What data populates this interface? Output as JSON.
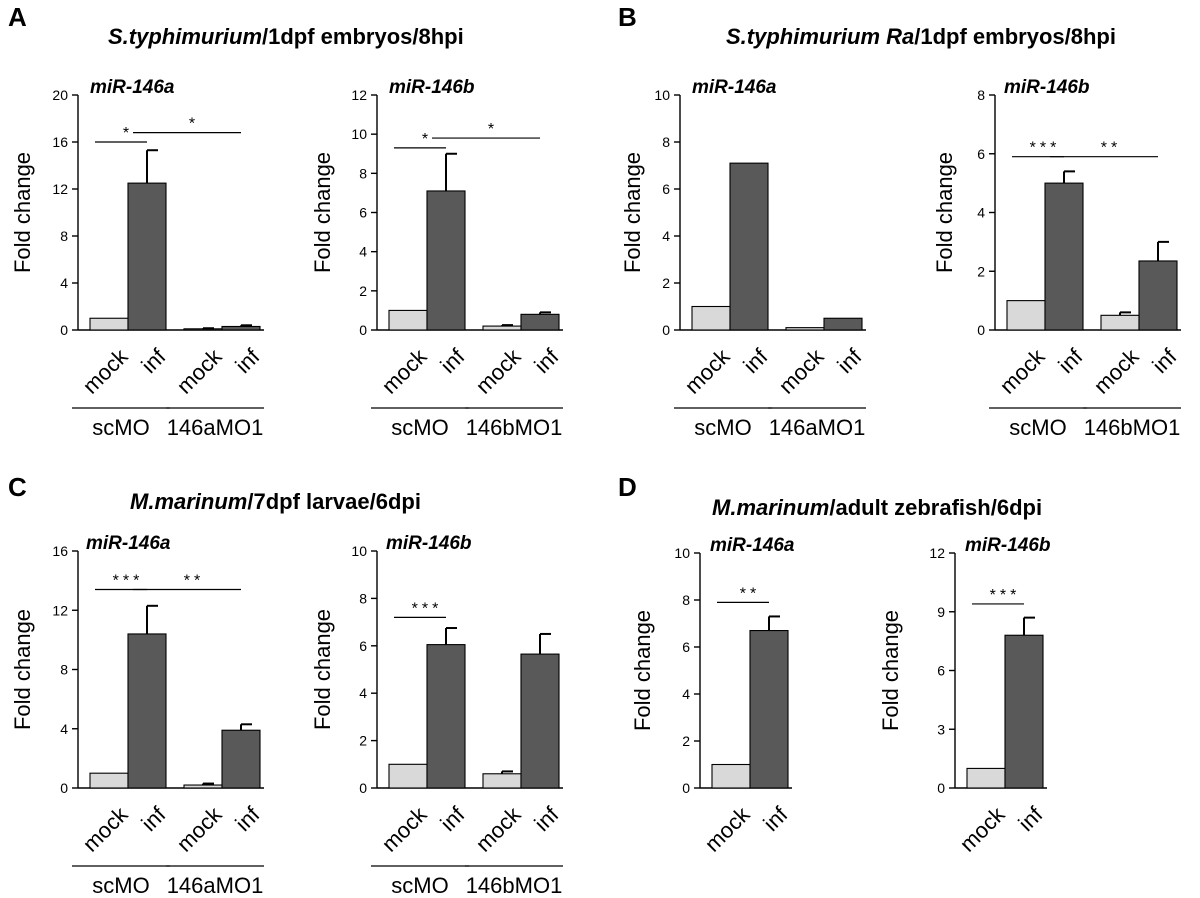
{
  "panels": [
    {
      "letter": "A",
      "title_italic": "S.typhimurium",
      "title_rest": "/1dpf embryos/8hpi"
    },
    {
      "letter": "B",
      "title_italic": "S.typhimurium Ra",
      "title_rest": "/1dpf embryos/8hpi"
    },
    {
      "letter": "C",
      "title_italic": "M.marinum",
      "title_rest": "/7dpf larvae/6dpi"
    },
    {
      "letter": "D",
      "title_italic": "M.marinum",
      "title_rest": "/adult zebrafish/6dpi"
    }
  ],
  "colors": {
    "mock": "#d9d9d9",
    "inf": "#595959",
    "axis": "#000000"
  },
  "chart_data": [
    {
      "type": "bar",
      "panel": "A",
      "title": "miR-146a",
      "ylabel": "Fold change",
      "ylim": [
        0,
        20
      ],
      "yticks": [
        0,
        4,
        8,
        12,
        16,
        20
      ],
      "categories": [
        "mock",
        "inf",
        "mock",
        "inf"
      ],
      "groups": [
        {
          "label": "scMO",
          "span": [
            0,
            1
          ]
        },
        {
          "label": "146aMO1",
          "span": [
            2,
            3
          ]
        }
      ],
      "values": [
        1,
        12.5,
        0.1,
        0.3
      ],
      "errors": [
        0,
        2.8,
        0.05,
        0.1
      ],
      "significance": [
        {
          "from": 0,
          "to": 1,
          "label": "*",
          "y": 16
        },
        {
          "from": 1,
          "to": 3,
          "label": "*",
          "y": 16.8
        }
      ]
    },
    {
      "type": "bar",
      "panel": "A",
      "title": "miR-146b",
      "ylabel": "Fold change",
      "ylim": [
        0,
        12
      ],
      "yticks": [
        0,
        2,
        4,
        6,
        8,
        10,
        12
      ],
      "categories": [
        "mock",
        "inf",
        "mock",
        "inf"
      ],
      "groups": [
        {
          "label": "scMO",
          "span": [
            0,
            1
          ]
        },
        {
          "label": "146bMO1",
          "span": [
            2,
            3
          ]
        }
      ],
      "values": [
        1,
        7.1,
        0.2,
        0.8
      ],
      "errors": [
        0,
        1.9,
        0.05,
        0.1
      ],
      "significance": [
        {
          "from": 0,
          "to": 1,
          "label": "*",
          "y": 9.3
        },
        {
          "from": 1,
          "to": 3,
          "label": "*",
          "y": 9.8
        }
      ]
    },
    {
      "type": "bar",
      "panel": "B",
      "title": "miR-146a",
      "ylabel": "Fold change",
      "ylim": [
        0,
        10
      ],
      "yticks": [
        0,
        2,
        4,
        6,
        8,
        10
      ],
      "categories": [
        "mock",
        "inf",
        "mock",
        "inf"
      ],
      "groups": [
        {
          "label": "scMO",
          "span": [
            0,
            1
          ]
        },
        {
          "label": "146aMO1",
          "span": [
            2,
            3
          ]
        }
      ],
      "values": [
        1,
        7.1,
        0.1,
        0.5
      ],
      "errors": [
        0,
        0,
        0,
        0
      ],
      "significance": []
    },
    {
      "type": "bar",
      "panel": "B",
      "title": "miR-146b",
      "ylabel": "Fold change",
      "ylim": [
        0,
        8
      ],
      "yticks": [
        0,
        2,
        4,
        6,
        8
      ],
      "categories": [
        "mock",
        "inf",
        "mock",
        "inf"
      ],
      "groups": [
        {
          "label": "scMO",
          "span": [
            0,
            1
          ]
        },
        {
          "label": "146bMO1",
          "span": [
            2,
            3
          ]
        }
      ],
      "values": [
        1,
        5.0,
        0.5,
        2.35
      ],
      "errors": [
        0,
        0.4,
        0.1,
        0.65
      ],
      "significance": [
        {
          "from": 0,
          "to": 1,
          "label": "***",
          "y": 5.9
        },
        {
          "from": 1,
          "to": 3,
          "label": "**",
          "y": 5.9
        }
      ]
    },
    {
      "type": "bar",
      "panel": "C",
      "title": "miR-146a",
      "ylabel": "Fold change",
      "ylim": [
        0,
        16
      ],
      "yticks": [
        0,
        4,
        8,
        12,
        16
      ],
      "categories": [
        "mock",
        "inf",
        "mock",
        "inf"
      ],
      "groups": [
        {
          "label": "scMO",
          "span": [
            0,
            1
          ]
        },
        {
          "label": "146aMO1",
          "span": [
            2,
            3
          ]
        }
      ],
      "values": [
        1,
        10.4,
        0.2,
        3.9
      ],
      "errors": [
        0,
        1.9,
        0.1,
        0.4
      ],
      "significance": [
        {
          "from": 0,
          "to": 1,
          "label": "***",
          "y": 13.4
        },
        {
          "from": 1,
          "to": 3,
          "label": "**",
          "y": 13.4
        }
      ]
    },
    {
      "type": "bar",
      "panel": "C",
      "title": "miR-146b",
      "ylabel": "Fold change",
      "ylim": [
        0,
        10
      ],
      "yticks": [
        0,
        2,
        4,
        6,
        8,
        10
      ],
      "categories": [
        "mock",
        "inf",
        "mock",
        "inf"
      ],
      "groups": [
        {
          "label": "scMO",
          "span": [
            0,
            1
          ]
        },
        {
          "label": "146bMO1",
          "span": [
            2,
            3
          ]
        }
      ],
      "values": [
        1,
        6.05,
        0.6,
        5.65
      ],
      "errors": [
        0,
        0.7,
        0.1,
        0.85
      ],
      "significance": [
        {
          "from": 0,
          "to": 1,
          "label": "***",
          "y": 7.2
        }
      ]
    },
    {
      "type": "bar",
      "panel": "D",
      "title": "miR-146a",
      "ylabel": "Fold change",
      "ylim": [
        0,
        10
      ],
      "yticks": [
        0,
        2,
        4,
        6,
        8,
        10
      ],
      "categories": [
        "mock",
        "inf"
      ],
      "groups": [],
      "values": [
        1,
        6.7
      ],
      "errors": [
        0,
        0.6
      ],
      "significance": [
        {
          "from": 0,
          "to": 1,
          "label": "**",
          "y": 7.9
        }
      ]
    },
    {
      "type": "bar",
      "panel": "D",
      "title": "miR-146b",
      "ylabel": "Fold change",
      "ylim": [
        0,
        12
      ],
      "yticks": [
        0,
        3,
        6,
        9,
        12
      ],
      "categories": [
        "mock",
        "inf"
      ],
      "groups": [],
      "values": [
        1,
        7.8
      ],
      "errors": [
        0,
        0.9
      ],
      "significance": [
        {
          "from": 0,
          "to": 1,
          "label": "***",
          "y": 9.4
        }
      ]
    }
  ]
}
